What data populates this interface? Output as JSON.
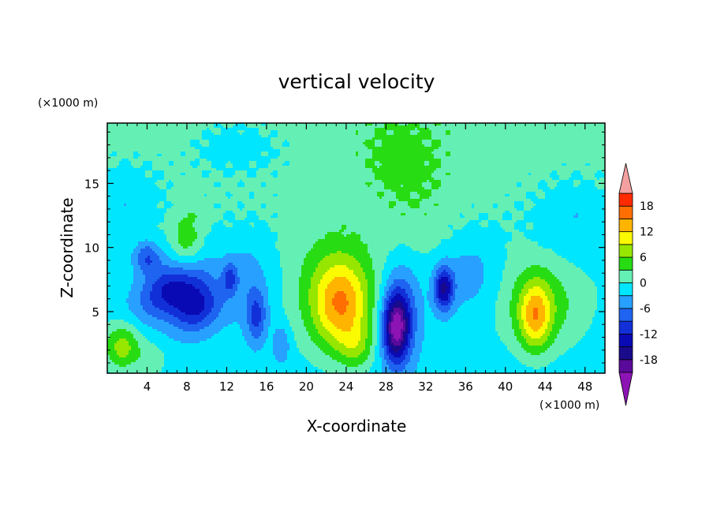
{
  "chart_data": {
    "type": "heatmap",
    "title": "vertical velocity",
    "xlabel": "X-coordinate",
    "ylabel": "Z-coordinate",
    "x_unit": "(×1000 m)",
    "y_unit": "(×1000 m)",
    "xlim": [
      0,
      50
    ],
    "ylim": [
      0.2,
      19.7
    ],
    "x_ticks": [
      4,
      8,
      12,
      16,
      20,
      24,
      28,
      32,
      36,
      40,
      44,
      48
    ],
    "y_ticks": [
      5,
      10,
      15
    ],
    "colorbar": {
      "levels": [
        -21,
        -18,
        -15,
        -12,
        -9,
        -6,
        -3,
        0,
        3,
        6,
        9,
        12,
        15,
        18,
        21
      ],
      "colors": [
        "#5a0a9a",
        "#1a0a8c",
        "#0a0ab4",
        "#1230d8",
        "#1e64f0",
        "#28a0ff",
        "#00e6ff",
        "#64f0b4",
        "#28dc14",
        "#96e600",
        "#fafa00",
        "#ffb400",
        "#ff6e00",
        "#ff2a00",
        "#e61414"
      ],
      "under_color": "#8c14b4",
      "over_color": "#f5a0a0",
      "tick_labels": [
        18,
        12,
        6,
        0,
        -6,
        -12,
        -18
      ],
      "extend": "both"
    },
    "features": [
      {
        "x": 23.5,
        "z": 5.5,
        "value": 12,
        "sx": 2.0,
        "sz": 2.4
      },
      {
        "x": 22.8,
        "z": 6.5,
        "value": 5,
        "sx": 3.2,
        "sz": 3.6
      },
      {
        "x": 43,
        "z": 4.6,
        "value": 11,
        "sx": 1.1,
        "sz": 1.8
      },
      {
        "x": 43.5,
        "z": 5.5,
        "value": 6,
        "sx": 3.0,
        "sz": 2.6
      },
      {
        "x": 1.5,
        "z": 2.2,
        "value": 9,
        "sx": 1.3,
        "sz": 1.3
      },
      {
        "x": 4.5,
        "z": 1.2,
        "value": 4,
        "sx": 1.0,
        "sz": 0.9
      },
      {
        "x": 8,
        "z": 10.6,
        "value": 5,
        "sx": 1.0,
        "sz": 1.8
      },
      {
        "x": 25,
        "z": 2.2,
        "value": 5,
        "sx": 1.2,
        "sz": 1.2
      },
      {
        "x": 29,
        "z": 3.6,
        "value": -17,
        "sx": 0.9,
        "sz": 1.8
      },
      {
        "x": 29.5,
        "z": 5.2,
        "value": -8,
        "sx": 1.4,
        "sz": 2.6
      },
      {
        "x": 33.8,
        "z": 6.8,
        "value": -14,
        "sx": 0.7,
        "sz": 1.2
      },
      {
        "x": 6.5,
        "z": 6.8,
        "value": -12,
        "sx": 2.6,
        "sz": 1.4,
        "rot": -0.35
      },
      {
        "x": 9,
        "z": 5.2,
        "value": -10,
        "sx": 1.8,
        "sz": 1.3,
        "rot": -0.35
      },
      {
        "x": 4,
        "z": 9.2,
        "value": -8,
        "sx": 1.0,
        "sz": 0.9
      },
      {
        "x": 15,
        "z": 4.6,
        "value": -8,
        "sx": 0.7,
        "sz": 1.4
      },
      {
        "x": 12.3,
        "z": 7.6,
        "value": -7,
        "sx": 0.5,
        "sz": 0.8
      },
      {
        "x": 14,
        "z": 7.5,
        "value": -4,
        "sx": 2.0,
        "sz": 2.5
      },
      {
        "x": 36.5,
        "z": 8.0,
        "value": -4,
        "sx": 2.2,
        "sz": 2.2
      },
      {
        "x": 17.5,
        "z": 2.5,
        "value": -5,
        "sx": 0.6,
        "sz": 1.0
      },
      {
        "x": 47,
        "z": 12.0,
        "value": -3,
        "sx": 3.0,
        "sz": 2.5
      },
      {
        "x": 2,
        "z": 14.0,
        "value": -3,
        "sx": 2.5,
        "sz": 2.2
      },
      {
        "x": 13,
        "z": 18.0,
        "value": -3,
        "sx": 3.5,
        "sz": 1.6
      },
      {
        "x": 31,
        "z": 14.0,
        "value": 2,
        "sx": 3.0,
        "sz": 3.5
      },
      {
        "x": 29,
        "z": 17.0,
        "value": 2,
        "sx": 2.5,
        "sz": 2.0
      }
    ]
  }
}
